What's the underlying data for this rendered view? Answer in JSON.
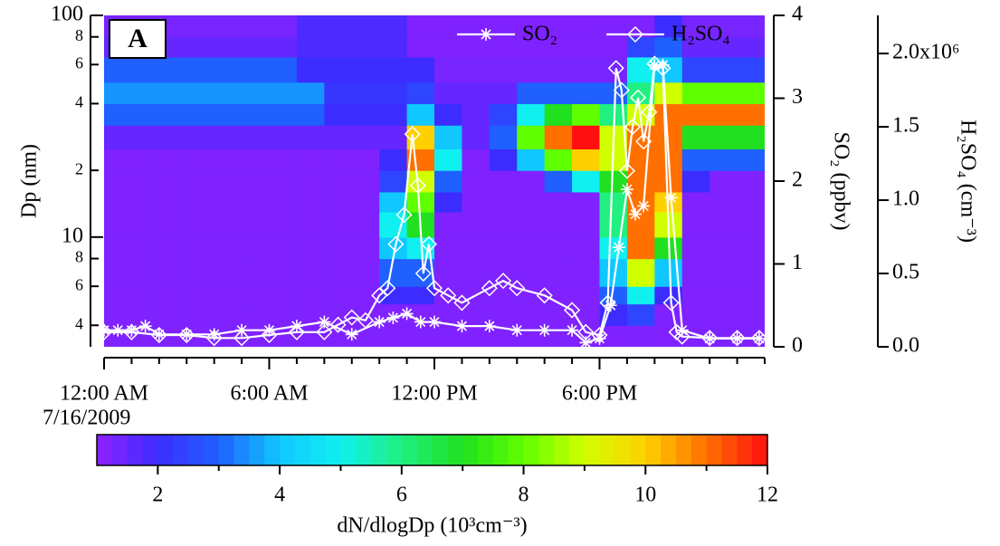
{
  "chart_data": [
    {
      "type": "heatmap",
      "panel_label": "A",
      "x_edges": [
        0,
        1,
        2,
        3,
        4,
        5,
        6,
        7,
        8,
        9,
        10,
        11,
        12,
        13,
        14,
        15,
        16,
        17,
        18,
        19,
        20,
        21,
        22,
        23,
        24
      ],
      "y_edges": [
        3.2,
        4,
        5,
        6,
        8,
        10,
        13,
        16,
        20,
        25,
        32,
        40,
        50,
        65,
        80,
        100
      ],
      "z": [
        [
          1.2,
          1.2,
          1.2,
          1.2,
          1.2,
          1.2,
          1.2,
          1.2,
          1.2,
          1.2,
          1.2,
          1.2,
          1.2,
          1.2,
          1.2,
          1.2,
          1.2,
          1.2,
          1.2,
          1.2,
          1.2,
          1.2,
          1.2,
          1.2
        ],
        [
          1.2,
          1.2,
          1.2,
          1.2,
          1.2,
          1.2,
          1.2,
          1.2,
          1.2,
          1.2,
          1.2,
          1.2,
          1.2,
          1.2,
          1.2,
          1.2,
          1.2,
          1.2,
          2,
          2.5,
          1.2,
          1.2,
          1.2,
          1.2
        ],
        [
          1.2,
          1.2,
          1.2,
          1.2,
          1.2,
          1.2,
          1.2,
          1.2,
          1.2,
          1.2,
          2,
          2,
          1.2,
          1.2,
          1.2,
          1.2,
          1.2,
          1.2,
          3,
          5,
          2,
          1.2,
          1.2,
          1.2
        ],
        [
          1.2,
          1.2,
          1.2,
          1.2,
          1.2,
          1.2,
          1.2,
          1.2,
          1.2,
          1.2,
          3,
          3,
          1.2,
          1.2,
          1.2,
          1.2,
          1.2,
          1.2,
          4,
          9,
          4,
          1.2,
          1.2,
          1.2
        ],
        [
          1.2,
          1.2,
          1.2,
          1.2,
          1.2,
          1.2,
          1.2,
          1.2,
          1.2,
          1.2,
          4,
          5,
          1.2,
          1.2,
          1.2,
          1.2,
          1.2,
          1.2,
          5,
          11,
          7,
          1.2,
          1.2,
          1.2
        ],
        [
          1.2,
          1.2,
          1.2,
          1.2,
          1.2,
          1.2,
          1.2,
          1.2,
          1.2,
          1.2,
          5,
          7,
          1.2,
          1.2,
          1.2,
          1.2,
          1.2,
          1.2,
          6,
          11,
          9,
          1.2,
          1.2,
          1.2
        ],
        [
          1.2,
          1.2,
          1.2,
          1.2,
          1.2,
          1.2,
          1.2,
          1.2,
          1.2,
          1.2,
          4,
          8,
          2,
          1.2,
          1.2,
          1.2,
          1.2,
          1.2,
          6,
          11,
          10,
          1.2,
          1.2,
          1.2
        ],
        [
          1.2,
          1.2,
          1.2,
          1.2,
          1.2,
          1.2,
          1.2,
          1.2,
          1.2,
          1.2,
          2.5,
          9,
          3,
          1.2,
          1.2,
          1.2,
          3,
          5,
          7,
          11,
          11,
          2,
          1.2,
          1.2
        ],
        [
          1.2,
          1.2,
          1.2,
          1.2,
          1.2,
          1.2,
          1.2,
          1.2,
          1.2,
          1.2,
          2,
          11,
          5,
          1.2,
          2,
          4,
          8,
          10,
          9,
          11,
          11,
          3,
          3,
          3
        ],
        [
          1.5,
          1.5,
          1.5,
          1.5,
          1.5,
          1.5,
          1.5,
          1.5,
          1.5,
          1.5,
          1.5,
          10,
          4,
          1.5,
          3,
          8,
          11,
          12,
          9,
          11,
          11,
          7,
          7,
          7
        ],
        [
          3,
          3,
          3,
          3,
          3,
          3,
          3,
          3,
          2,
          2,
          2,
          4,
          2,
          1.5,
          2.5,
          5,
          7,
          8,
          6,
          9,
          11,
          11,
          11,
          11
        ],
        [
          3.5,
          3.5,
          3.5,
          3.5,
          3.5,
          3.5,
          3.5,
          3.5,
          2.2,
          2.2,
          2.2,
          2.5,
          1.5,
          1.5,
          1.5,
          3,
          3,
          3,
          3,
          6,
          9,
          8,
          8,
          8
        ],
        [
          3,
          3,
          3,
          3,
          3,
          3,
          3,
          2,
          2,
          2,
          2,
          2,
          1.3,
          1.3,
          1.3,
          1.3,
          1.3,
          1.3,
          1.3,
          5,
          4,
          2.5,
          2.5,
          2.5
        ],
        [
          1.5,
          1.5,
          1.5,
          1.5,
          1.5,
          1.5,
          1.5,
          1.8,
          1.8,
          1.8,
          1.8,
          1.2,
          1.2,
          1.2,
          1.2,
          1.2,
          1.2,
          1.2,
          1.2,
          2.5,
          3,
          1.5,
          1.5,
          1.5
        ],
        [
          1.3,
          1.3,
          1.3,
          1.3,
          1.3,
          1.3,
          1.3,
          1.8,
          1.8,
          1.8,
          1.8,
          1.2,
          1.2,
          1.2,
          1.2,
          1.2,
          1.2,
          1.2,
          1.2,
          1.2,
          2,
          1.3,
          1.3,
          1.3
        ]
      ],
      "xlim": [
        0,
        24
      ],
      "xticks": [
        {
          "value": 0,
          "label": "12:00 AM"
        },
        {
          "value": 6,
          "label": "6:00 AM"
        },
        {
          "value": 12,
          "label": "12:00 PM"
        },
        {
          "value": 18,
          "label": "6:00 PM"
        }
      ],
      "xminorticks": [
        1,
        2,
        3,
        4,
        5,
        7,
        8,
        9,
        10,
        11,
        13,
        14,
        15,
        16,
        17,
        19,
        20,
        21,
        22,
        23,
        24
      ],
      "x_sublabel": "7/16/2009",
      "ylabel": "Dp (nm)",
      "yscale": "log",
      "ylim": [
        3.2,
        100
      ],
      "yticks": [
        4,
        6,
        8,
        10,
        {
          "value": 20,
          "label": "2"
        },
        {
          "value": 40,
          "label": "4"
        },
        {
          "value": 60,
          "label": "6"
        },
        {
          "value": 80,
          "label": "8"
        },
        100
      ],
      "y2label": "SO₂ (ppbv)",
      "y2lim": [
        0,
        4
      ],
      "y2ticks": [
        0,
        1,
        2,
        3,
        4
      ],
      "y3label": "H₂SO₄ (cm⁻³)",
      "y3lim": [
        0,
        2260000
      ],
      "y3ticks": [
        {
          "value": 0,
          "label": "0.0"
        },
        {
          "value": 500000,
          "label": "0.5"
        },
        {
          "value": 1000000,
          "label": "1.0"
        },
        {
          "value": 1500000,
          "label": "1.5"
        },
        {
          "value": 2000000,
          "label": "2.0x10⁶"
        }
      ],
      "legend": "top-right",
      "series": [
        {
          "name": "SO₂",
          "color": "#ffffff",
          "marker": "asterisk",
          "axis": "y2",
          "x": [
            0,
            0.5,
            1,
            1.5,
            2,
            3,
            4,
            5,
            6,
            7,
            8,
            9,
            10,
            10.5,
            11,
            11.5,
            12,
            13,
            14,
            15,
            16,
            17,
            17.5,
            18,
            18.4,
            18.7,
            19,
            19.3,
            19.6,
            20,
            20.3,
            20.6,
            21,
            22,
            23,
            23.8
          ],
          "values": [
            0.2,
            0.2,
            0.2,
            0.25,
            0.15,
            0.15,
            0.15,
            0.2,
            0.2,
            0.25,
            0.3,
            0.15,
            0.3,
            0.35,
            0.4,
            0.3,
            0.3,
            0.25,
            0.25,
            0.2,
            0.2,
            0.2,
            0.05,
            0.1,
            0.5,
            1.2,
            1.9,
            1.6,
            1.7,
            3.4,
            3.4,
            1.8,
            0.2,
            0.1,
            0.1,
            0.1
          ]
        },
        {
          "name": "H₂SO₄",
          "color": "#ffffff",
          "marker": "diamond",
          "axis": "y3",
          "x": [
            0,
            1,
            2,
            3,
            4,
            5,
            6,
            7,
            8,
            8.5,
            9,
            9.5,
            10,
            10.3,
            10.6,
            10.9,
            11.2,
            11.4,
            11.6,
            11.8,
            12,
            12.5,
            13,
            14,
            14.5,
            15,
            16,
            17,
            17.5,
            18,
            18.3,
            18.6,
            18.8,
            19,
            19.2,
            19.4,
            19.6,
            19.8,
            20,
            20.3,
            20.6,
            20.8,
            21,
            22,
            23,
            23.8
          ],
          "values": [
            100000,
            100000,
            80000,
            80000,
            60000,
            60000,
            80000,
            100000,
            100000,
            150000,
            200000,
            180000,
            350000,
            400000,
            700000,
            900000,
            1450000,
            1100000,
            500000,
            700000,
            400000,
            350000,
            300000,
            400000,
            450000,
            400000,
            350000,
            250000,
            100000,
            80000,
            300000,
            1900000,
            1750000,
            1200000,
            1500000,
            1700000,
            1400000,
            1600000,
            1930000,
            1900000,
            300000,
            100000,
            70000,
            60000,
            60000,
            60000
          ]
        }
      ]
    },
    {
      "type": "colorbar",
      "xlim": [
        1,
        12
      ],
      "xticks": [
        2,
        4,
        6,
        8,
        10,
        12
      ],
      "xminorticks": [
        3,
        5,
        7,
        9,
        11
      ],
      "xlabel": "dN/dlogDp (10³cm⁻³)",
      "colormap": [
        "#9020ff",
        "#3c2cff",
        "#2060ff",
        "#10c8ff",
        "#10f0f0",
        "#20f080",
        "#20e020",
        "#60ff00",
        "#d0ff00",
        "#ffd000",
        "#ff7000",
        "#ff1010"
      ]
    }
  ]
}
